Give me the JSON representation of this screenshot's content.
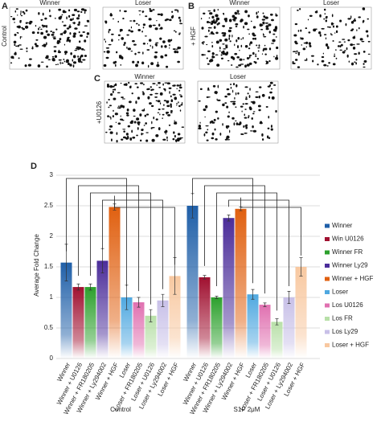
{
  "panels": [
    {
      "letter": "A",
      "row_label": "Control",
      "images": [
        "Winner",
        "Loser"
      ]
    },
    {
      "letter": "B",
      "row_label": "+ HGF",
      "images": [
        "Winner",
        "Loser"
      ]
    },
    {
      "letter": "C",
      "row_label": "+U0126",
      "images": [
        "Winner",
        "Loser"
      ]
    }
  ],
  "chart_data": {
    "type": "bar",
    "letter": "D",
    "y_label": "Average Fold Change",
    "categories": [
      "Control",
      "S1P 2μM"
    ],
    "bar_labels": [
      "Winner",
      "Winner + U0126",
      "Winner + FR180205",
      "Winner + Ly294002",
      "Winner + HGF",
      "Loser",
      "Loser + FR180205",
      "Loser + U0126",
      "Loser + Ly294002",
      "Loser + HGF"
    ],
    "ylim": [
      0,
      3
    ],
    "yticks": [
      0,
      0.5,
      1,
      1.5,
      2,
      2.5,
      3
    ],
    "grid": true,
    "series": [
      {
        "name": "Winner",
        "color": "#1f5fa8",
        "values": [
          1.57,
          2.5
        ],
        "errors": [
          0.3,
          0.2
        ]
      },
      {
        "name": "Win U0126",
        "color": "#a01030",
        "values": [
          1.17,
          1.33
        ],
        "errors": [
          0.05,
          0.03
        ]
      },
      {
        "name": "Winner FR",
        "color": "#2ca02c",
        "values": [
          1.17,
          1.0
        ],
        "errors": [
          0.05,
          0.02
        ]
      },
      {
        "name": "Winner Ly29",
        "color": "#4b2d9a",
        "values": [
          1.6,
          2.3
        ],
        "errors": [
          0.2,
          0.05
        ]
      },
      {
        "name": "Winner + HGF",
        "color": "#e06010",
        "values": [
          2.48,
          2.45
        ],
        "errors": [
          0.05,
          0.03
        ]
      },
      {
        "name": "Loser",
        "color": "#4fa8e0",
        "values": [
          1.0,
          1.05
        ],
        "errors": [
          0.2,
          0.08
        ]
      },
      {
        "name": "Los U0126",
        "color": "#e070b0",
        "values": [
          0.92,
          0.88
        ],
        "errors": [
          0.08,
          0.03
        ]
      },
      {
        "name": "Los FR",
        "color": "#b8e0a8",
        "values": [
          0.7,
          0.6
        ],
        "errors": [
          0.1,
          0.05
        ]
      },
      {
        "name": "Los Ly29",
        "color": "#c8c0e8",
        "values": [
          0.95,
          1.0
        ],
        "errors": [
          0.1,
          0.1
        ]
      },
      {
        "name": "Loser + HGF",
        "color": "#f8c8a0",
        "values": [
          1.35,
          1.5
        ],
        "errors": [
          0.3,
          0.15
        ]
      }
    ]
  }
}
